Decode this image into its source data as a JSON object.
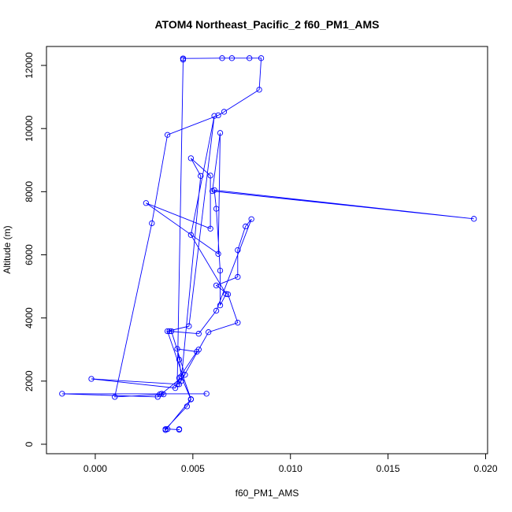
{
  "chart_data": {
    "type": "line",
    "title": "ATOM4 Northeast_Pacific_2 f60_PM1_AMS",
    "xlabel": "f60_PM1_AMS",
    "ylabel": "Altitude (m)",
    "xlim": [
      -0.0025,
      0.0201
    ],
    "ylim": [
      -300,
      12600
    ],
    "x_ticks": [
      0.0,
      0.005,
      0.01,
      0.015,
      0.02
    ],
    "x_tick_labels": [
      "0.000",
      "0.005",
      "0.010",
      "0.015",
      "0.020"
    ],
    "y_ticks": [
      0,
      2000,
      4000,
      6000,
      8000,
      10000,
      12000
    ],
    "y_tick_labels": [
      "0",
      "2000",
      "4000",
      "6000",
      "8000",
      "10000",
      "12000"
    ],
    "grid": false,
    "markers": "open-circle",
    "series": [
      {
        "color": "#0000ff",
        "points": [
          [
            0.0043,
            480
          ],
          [
            0.0043,
            460
          ],
          [
            0.0037,
            480
          ],
          [
            0.0036,
            480
          ],
          [
            0.0047,
            1200
          ],
          [
            0.0049,
            1420
          ],
          [
            0.0044,
            2150
          ],
          [
            0.0043,
            2680
          ],
          [
            0.0042,
            3020
          ],
          [
            0.0052,
            2930
          ],
          [
            0.0043,
            2100
          ],
          [
            0.0041,
            1780
          ],
          [
            -0.0002,
            2070
          ],
          [
            0.0043,
            1900
          ],
          [
            0.0053,
            3000
          ],
          [
            0.0058,
            3550
          ],
          [
            0.0073,
            3850
          ],
          [
            0.0068,
            4750
          ],
          [
            0.0062,
            5030
          ],
          [
            0.0073,
            5300
          ],
          [
            0.0073,
            6150
          ],
          [
            0.0077,
            6900
          ],
          [
            0.008,
            7130
          ],
          [
            0.0062,
            4230
          ],
          [
            0.0053,
            3500
          ],
          [
            0.0038,
            3580
          ],
          [
            0.0039,
            3580
          ],
          [
            0.0046,
            2200
          ],
          [
            0.0034,
            1600
          ],
          [
            0.0057,
            1600
          ],
          [
            -0.0017,
            1600
          ],
          [
            0.0032,
            1500
          ],
          [
            0.0033,
            1580
          ],
          [
            0.0035,
            1580
          ],
          [
            0.001,
            1500
          ],
          [
            0.0029,
            7000
          ],
          [
            0.0037,
            9800
          ],
          [
            0.0063,
            10420
          ],
          [
            0.0066,
            10530
          ],
          [
            0.0084,
            11230
          ],
          [
            0.0085,
            12230
          ],
          [
            0.0079,
            12230
          ],
          [
            0.007,
            12230
          ],
          [
            0.0065,
            12230
          ],
          [
            0.0045,
            12220
          ],
          [
            0.0045,
            12220
          ],
          [
            0.0045,
            12180
          ],
          [
            0.0042,
            1900
          ],
          [
            0.0044,
            2000
          ],
          [
            0.0054,
            8500
          ],
          [
            0.0049,
            9060
          ],
          [
            0.0059,
            8510
          ],
          [
            0.0059,
            6830
          ],
          [
            0.0026,
            7640
          ],
          [
            0.0063,
            6030
          ],
          [
            0.0064,
            9860
          ],
          [
            0.006,
            8020
          ],
          [
            0.0194,
            7140
          ],
          [
            0.0061,
            8050
          ],
          [
            0.0062,
            7460
          ],
          [
            0.0064,
            5500
          ],
          [
            0.0064,
            4400
          ],
          [
            0.0067,
            4760
          ],
          [
            0.0049,
            6630
          ],
          [
            0.0061,
            10400
          ],
          [
            0.0048,
            3740
          ],
          [
            0.0037,
            3580
          ],
          [
            0.0049,
            1430
          ],
          [
            0.0036,
            450
          ]
        ]
      }
    ]
  }
}
